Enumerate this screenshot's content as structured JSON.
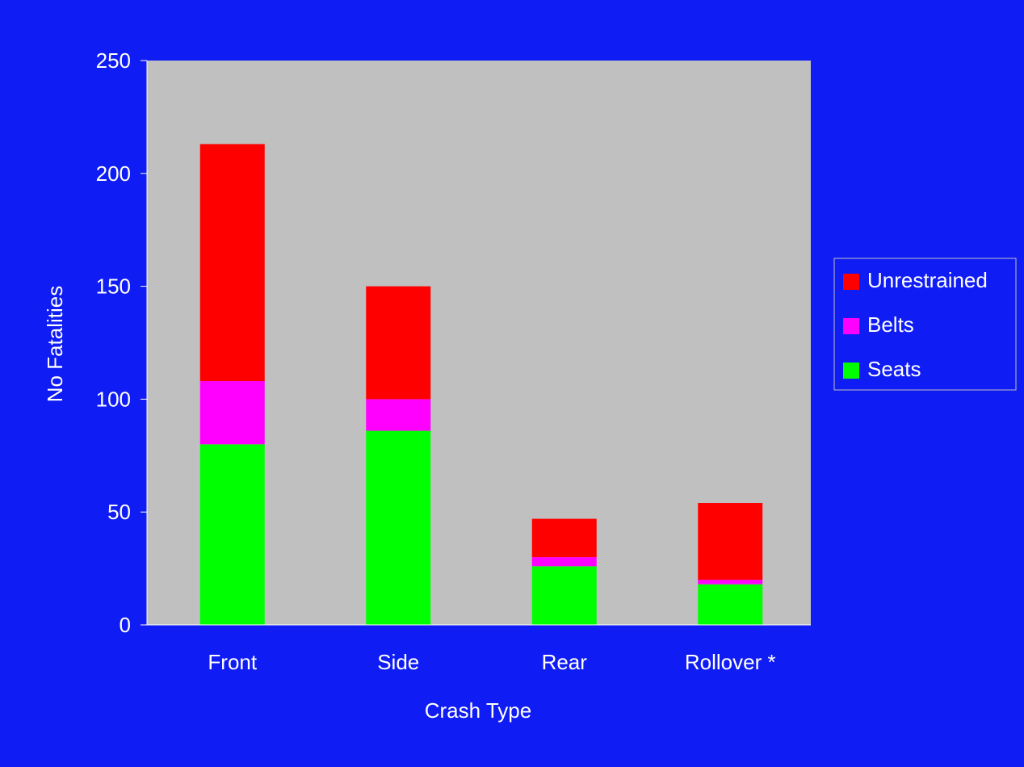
{
  "chart_data": {
    "type": "bar",
    "stacked": true,
    "title": "",
    "xlabel": "Crash Type",
    "ylabel": "No Fatalities",
    "categories": [
      "Front",
      "Side",
      "Rear",
      "Rollover *"
    ],
    "ylim": [
      0,
      250
    ],
    "yticks": [
      0,
      50,
      100,
      150,
      200,
      250
    ],
    "grid": false,
    "legend_position": "right",
    "series": [
      {
        "name": "Seats",
        "color": "#00ff00",
        "values": [
          80,
          86,
          26,
          18
        ]
      },
      {
        "name": "Belts",
        "color": "#ff00ff",
        "values": [
          28,
          14,
          4,
          2
        ]
      },
      {
        "name": "Unrestrained",
        "color": "#ff0000",
        "values": [
          105,
          50,
          17,
          34
        ]
      }
    ],
    "legend_order": [
      "Unrestrained",
      "Belts",
      "Seats"
    ],
    "colors": {
      "background": "#0f1cf3",
      "plot_area": "#c0c0c0",
      "text": "#ffffff",
      "axis": "#ffffff"
    }
  }
}
